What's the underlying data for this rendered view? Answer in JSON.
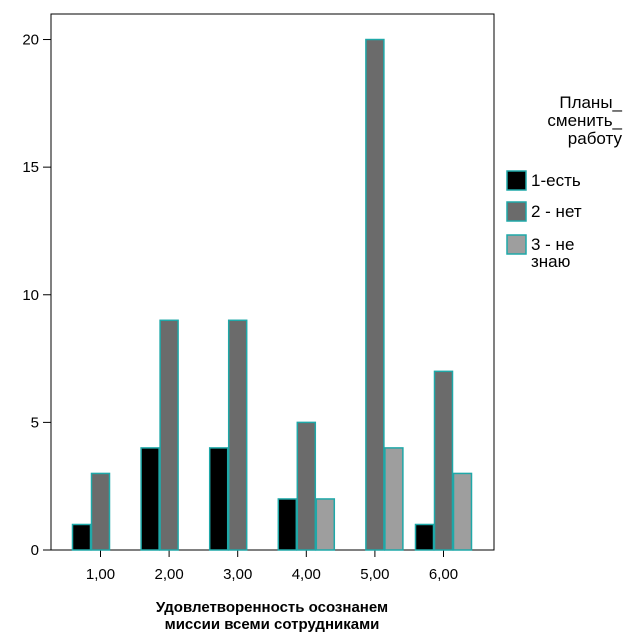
{
  "chart_data": {
    "type": "bar",
    "title": "",
    "xlabel": [
      "Удовлетворенность осознанем",
      "миссии всеми сотрудниками"
    ],
    "ylabel": "",
    "ylim": [
      0,
      21
    ],
    "yticks": [
      0,
      5,
      10,
      15,
      20
    ],
    "categories": [
      "1,00",
      "2,00",
      "3,00",
      "4,00",
      "5,00",
      "6,00"
    ],
    "legend": {
      "title_lines": [
        "Планы_",
        "сменить_",
        "работу"
      ],
      "placement": "right"
    },
    "series": [
      {
        "name_lines": [
          "1-есть"
        ],
        "color": "#000000",
        "values": [
          1,
          4,
          4,
          2,
          0,
          1
        ]
      },
      {
        "name_lines": [
          "2 - нет"
        ],
        "color": "#6b6b6b",
        "values": [
          3,
          9,
          9,
          5,
          20,
          7
        ]
      },
      {
        "name_lines": [
          "3 - не",
          "знаю"
        ],
        "color": "#9e9e9e",
        "values": [
          0,
          0,
          0,
          2,
          4,
          3
        ]
      }
    ],
    "bar_outline_color": "#1fa8a8"
  }
}
